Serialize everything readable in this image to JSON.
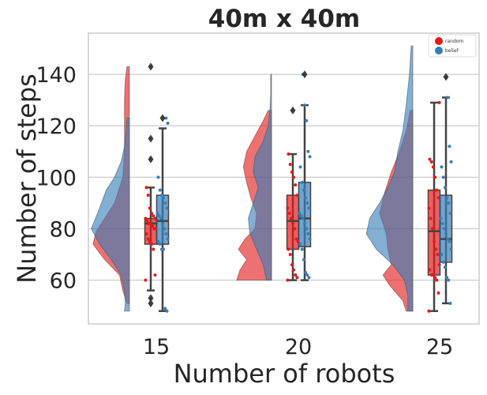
{
  "chart_data": {
    "type": "raincloud",
    "title": "40m x 40m",
    "xlabel": "Number of robots",
    "ylabel": "Number of steps",
    "categories": [
      "15",
      "20",
      "25"
    ],
    "ylim": [
      43,
      156
    ],
    "yticks": [
      60,
      80,
      100,
      120,
      140
    ],
    "grid": true,
    "legend": {
      "position": "top-right",
      "entries": [
        "random",
        "belief"
      ]
    },
    "colors": {
      "random": "#e41a1c",
      "belief": "#377eb8",
      "median": "#444444",
      "cloud_overlap": "#6a6a8e"
    },
    "series": [
      {
        "name": "random",
        "box": [
          {
            "category": "15",
            "whisker_low": 56,
            "q1": 74,
            "median": 82,
            "q3": 84,
            "whisker_high": 96,
            "outliers": [
              143,
              115,
              107,
              53,
              51
            ]
          },
          {
            "category": "20",
            "whisker_low": 60,
            "q1": 72,
            "median": 83,
            "q3": 93,
            "whisker_high": 109,
            "outliers": [
              126
            ]
          },
          {
            "category": "25",
            "whisker_low": 48,
            "q1": 62,
            "median": 79,
            "q3": 95,
            "whisker_high": 129,
            "outliers": []
          }
        ],
        "density": [
          {
            "category": "15",
            "ys": [
              51,
              56,
              62,
              68,
              74,
              79,
              84,
              90,
              100,
              110,
              120,
              130,
              138,
              143
            ],
            "widths": [
              3,
              8,
              12,
              30,
              44,
              40,
              30,
              18,
              8,
              6,
              6,
              6,
              5,
              3
            ]
          },
          {
            "category": "20",
            "ys": [
              60,
              64,
              68,
              72,
              76,
              80,
              86,
              92,
              98,
              104,
              110,
              116,
              122,
              126
            ],
            "widths": [
              42,
              38,
              30,
              40,
              32,
              20,
              18,
              25,
              30,
              34,
              30,
              20,
              10,
              4
            ]
          },
          {
            "category": "25",
            "ys": [
              48,
              52,
              58,
              62,
              66,
              72,
              78,
              86,
              94,
              102,
              110,
              118,
              126
            ],
            "widths": [
              8,
              12,
              28,
              36,
              26,
              30,
              32,
              40,
              34,
              26,
              16,
              8,
              3
            ]
          }
        ],
        "points": [
          {
            "category": "15",
            "values": [
              60,
              62,
              72,
              74,
              75,
              76,
              78,
              80,
              80,
              81,
              82,
              82,
              83,
              84,
              84,
              85,
              86,
              88,
              93,
              96
            ]
          },
          {
            "category": "20",
            "values": [
              60,
              61,
              62,
              64,
              66,
              70,
              72,
              75,
              76,
              80,
              82,
              84,
              86,
              88,
              93,
              97,
              100,
              102,
              105,
              109
            ]
          },
          {
            "category": "25",
            "values": [
              48,
              55,
              60,
              61,
              62,
              62,
              64,
              66,
              70,
              72,
              75,
              80,
              84,
              88,
              92,
              95,
              100,
              104,
              106,
              107,
              129
            ]
          }
        ]
      },
      {
        "name": "belief",
        "box": [
          {
            "category": "15",
            "whisker_low": 48,
            "q1": 74,
            "median": 83,
            "q3": 93,
            "whisker_high": 119,
            "outliers": [
              123
            ]
          },
          {
            "category": "20",
            "whisker_low": 60,
            "q1": 73,
            "median": 84,
            "q3": 98,
            "whisker_high": 128,
            "outliers": [
              140
            ]
          },
          {
            "category": "25",
            "whisker_low": 51,
            "q1": 67,
            "median": 76,
            "q3": 93,
            "whisker_high": 131,
            "outliers": [
              139
            ]
          }
        ],
        "density": [
          {
            "category": "15",
            "ys": [
              48,
              51,
              56,
              62,
              68,
              74,
              80,
              88,
              95,
              100,
              106,
              112,
              118,
              123
            ],
            "widths": [
              6,
              5,
              6,
              10,
              22,
              36,
              46,
              36,
              28,
              18,
              10,
              6,
              4,
              3
            ]
          },
          {
            "category": "20",
            "ys": [
              60,
              66,
              72,
              78,
              84,
              90,
              96,
              102,
              108,
              114,
              120,
              126,
              132,
              140
            ],
            "widths": [
              6,
              10,
              18,
              26,
              28,
              22,
              16,
              22,
              20,
              10,
              4,
              2,
              1,
              1
            ]
          },
          {
            "category": "25",
            "ys": [
              48,
              54,
              60,
              66,
              72,
              78,
              84,
              90,
              96,
              102,
              110,
              118,
              128,
              140,
              151
            ],
            "widths": [
              6,
              6,
              10,
              24,
              44,
              56,
              52,
              40,
              30,
              22,
              18,
              12,
              8,
              4,
              2
            ]
          }
        ],
        "points": [
          {
            "category": "15",
            "values": [
              48,
              49,
              72,
              72,
              74,
              75,
              76,
              78,
              80,
              82,
              84,
              85,
              86,
              88,
              90,
              92,
              93,
              95,
              100,
              121,
              123
            ]
          },
          {
            "category": "20",
            "values": [
              61,
              62,
              63,
              68,
              72,
              74,
              76,
              78,
              80,
              82,
              84,
              85,
              86,
              88,
              90,
              92,
              95,
              98,
              104,
              108,
              110,
              122,
              128,
              140
            ]
          },
          {
            "category": "25",
            "values": [
              51,
              60,
              61,
              65,
              67,
              70,
              72,
              75,
              76,
              78,
              80,
              82,
              84,
              86,
              90,
              92,
              96,
              100,
              104,
              106,
              112,
              131
            ]
          }
        ]
      }
    ]
  }
}
